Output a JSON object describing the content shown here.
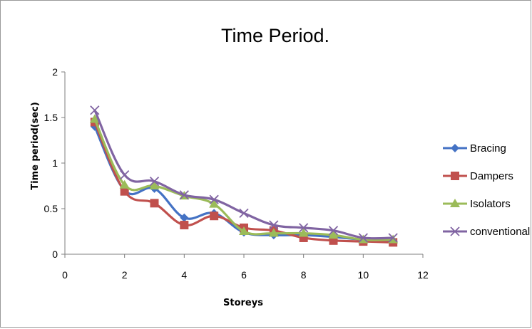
{
  "chart_data": {
    "type": "line",
    "title": "Time Period.",
    "xlabel": "Storeys",
    "ylabel": "Time period(sec)",
    "xlim": [
      0,
      12
    ],
    "ylim": [
      0,
      2
    ],
    "xticks": [
      0,
      2,
      4,
      6,
      8,
      10,
      12
    ],
    "yticks": [
      0,
      0.5,
      1,
      1.5,
      2
    ],
    "xtick_labels": [
      "0",
      "2",
      "4",
      "6",
      "8",
      "10",
      "12"
    ],
    "ytick_labels": [
      "0",
      "0.5",
      "1",
      "1.5",
      "2"
    ],
    "grid": false,
    "smooth": true,
    "legend_position": "right",
    "x": [
      1,
      2,
      3,
      4,
      5,
      6,
      7,
      8,
      9,
      10,
      11
    ],
    "series": [
      {
        "name": "Bracing",
        "color": "#4472C4",
        "marker": "diamond",
        "values": [
          1.4,
          0.7,
          0.72,
          0.4,
          0.45,
          0.24,
          0.21,
          0.21,
          0.19,
          0.16,
          0.15
        ]
      },
      {
        "name": "Dampers",
        "color": "#C0504D",
        "marker": "square",
        "values": [
          1.45,
          0.69,
          0.56,
          0.32,
          0.42,
          0.29,
          0.26,
          0.18,
          0.15,
          0.14,
          0.13
        ]
      },
      {
        "name": "Isolators",
        "color": "#9BBB59",
        "marker": "triangle",
        "values": [
          1.48,
          0.76,
          0.75,
          0.64,
          0.55,
          0.25,
          0.23,
          0.23,
          0.21,
          0.16,
          0.16
        ]
      },
      {
        "name": "conventional",
        "color": "#8064A2",
        "marker": "x",
        "values": [
          1.58,
          0.87,
          0.8,
          0.65,
          0.6,
          0.45,
          0.32,
          0.29,
          0.26,
          0.18,
          0.18
        ]
      }
    ]
  }
}
